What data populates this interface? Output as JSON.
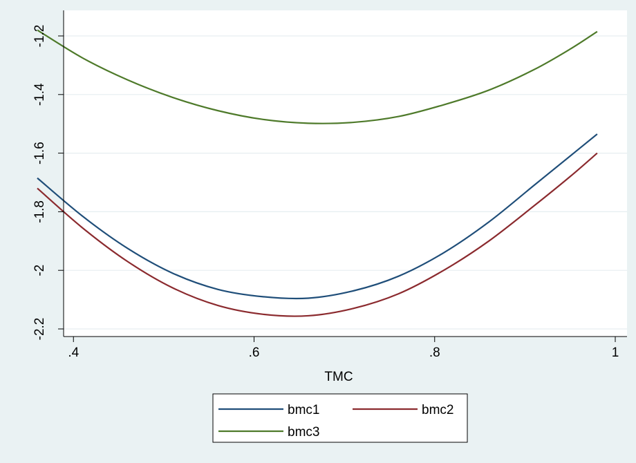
{
  "chart_data": {
    "type": "line",
    "xlabel": "TMC",
    "ylabel": "",
    "xlim": [
      0.36,
      1.0
    ],
    "ylim": [
      -2.2,
      -1.2
    ],
    "x_ticks": [
      0.4,
      0.6,
      0.8,
      1.0
    ],
    "x_tick_labels": [
      ".4",
      ".6",
      ".8",
      "1"
    ],
    "y_ticks": [
      -1.2,
      -1.4,
      -1.6,
      -1.8,
      -2.0,
      -2.2
    ],
    "y_tick_labels": [
      "-1.2",
      "-1.4",
      "-1.6",
      "-1.8",
      "-2",
      "-2.2"
    ],
    "grid": "horizontal",
    "legend_position": "bottom",
    "series": [
      {
        "name": "bmc1",
        "color": "#1f4e79",
        "x": [
          0.36,
          0.41,
          0.46,
          0.51,
          0.56,
          0.61,
          0.66,
          0.71,
          0.76,
          0.81,
          0.86,
          0.91,
          0.95,
          0.98
        ],
        "y": [
          -1.685,
          -1.815,
          -1.925,
          -2.01,
          -2.065,
          -2.09,
          -2.095,
          -2.07,
          -2.02,
          -1.94,
          -1.835,
          -1.71,
          -1.61,
          -1.535
        ]
      },
      {
        "name": "bmc2",
        "color": "#8b2a2e",
        "x": [
          0.36,
          0.41,
          0.46,
          0.51,
          0.56,
          0.61,
          0.66,
          0.71,
          0.76,
          0.81,
          0.86,
          0.91,
          0.95,
          0.98
        ],
        "y": [
          -1.72,
          -1.855,
          -1.97,
          -2.06,
          -2.12,
          -2.15,
          -2.155,
          -2.13,
          -2.08,
          -2.0,
          -1.9,
          -1.78,
          -1.68,
          -1.6
        ]
      },
      {
        "name": "bmc3",
        "color": "#4e7a2a",
        "x": [
          0.36,
          0.41,
          0.46,
          0.51,
          0.56,
          0.61,
          0.66,
          0.71,
          0.76,
          0.81,
          0.86,
          0.91,
          0.95,
          0.98
        ],
        "y": [
          -1.18,
          -1.275,
          -1.35,
          -1.41,
          -1.455,
          -1.485,
          -1.498,
          -1.495,
          -1.475,
          -1.435,
          -1.385,
          -1.315,
          -1.245,
          -1.185
        ]
      }
    ]
  }
}
